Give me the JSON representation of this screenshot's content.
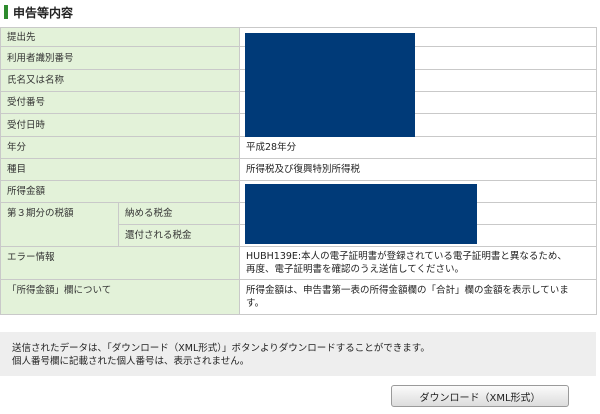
{
  "section": {
    "title": "申告等内容"
  },
  "rows": {
    "submit_to": {
      "label": "提出先",
      "value": ""
    },
    "user_id": {
      "label": "利用者識別番号",
      "value": ""
    },
    "name": {
      "label": "氏名又は名称",
      "value": ""
    },
    "receipt_no": {
      "label": "受付番号",
      "value": ""
    },
    "receipt_date": {
      "label": "受付日時",
      "value": ""
    },
    "year": {
      "label": "年分",
      "value": "平成28年分"
    },
    "category": {
      "label": "種目",
      "value": "所得税及び復興特別所得税"
    },
    "income": {
      "label": "所得金額",
      "value": ""
    },
    "q3_tax": {
      "label": "第３期分の税額",
      "pay_label": "納める税金",
      "pay_value": "",
      "refund_label": "還付される税金",
      "refund_value": ""
    },
    "error": {
      "label": "エラー情報",
      "line1": "HUBH139E:本人の電子証明書が登録されている電子証明書と異なるため、",
      "line2": "再度、電子証明書を確認のうえ送信してください。"
    },
    "income_note": {
      "label": "「所得金額」欄について",
      "line1": "所得金額は、申告書第一表の所得金額欄の「合計」欄の金額を表示していま",
      "line2": "す。"
    }
  },
  "notice": {
    "line1": "送信されたデータは、「ダウンロード（XML形式）」ボタンよりダウンロードすることができます。",
    "line2": "個人番号欄に記載された個人番号は、表示されません。"
  },
  "download_button": {
    "label": "ダウンロード（XML形式）"
  },
  "colors": {
    "label_bg": "#e3f2d9",
    "mask": "#003a78",
    "accent": "#2e8b2e"
  }
}
